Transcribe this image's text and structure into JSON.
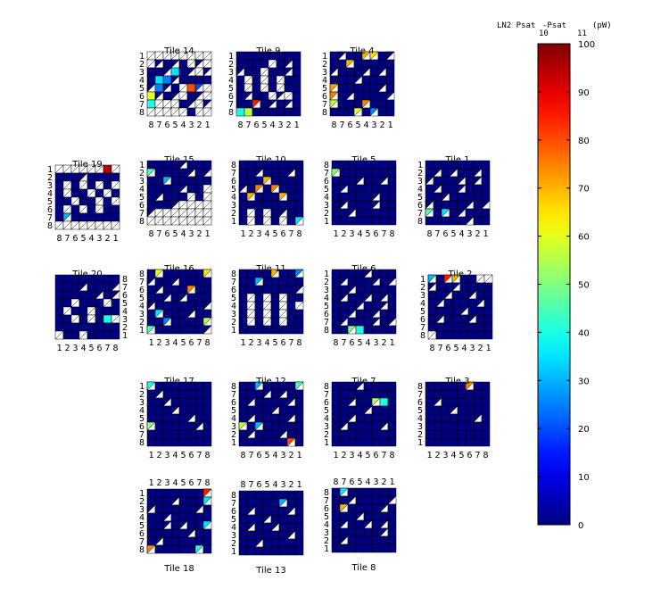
{
  "chart_data": {
    "type": "heatmap",
    "colorbar": {
      "title_main": "LN2 Psat",
      "title_sub_a": "10",
      "title_sep": " -Psat",
      "title_sub_b": "11",
      "title_unit": "(pW)",
      "range": [
        0,
        100
      ],
      "ticks": [
        "0",
        "10",
        "20",
        "30",
        "40",
        "50",
        "60",
        "70",
        "80",
        "90",
        "100"
      ],
      "colormap": "jet"
    },
    "tiles": [
      {
        "title": "Tile 14",
        "title_pos": "top",
        "row_labels": [
          "1",
          "2",
          "3",
          "4",
          "5",
          "6",
          "7",
          "8"
        ],
        "col_labels": [
          "8",
          "7",
          "6",
          "5",
          "4",
          "3",
          "2",
          "1"
        ],
        "col_label_pos": "bottom",
        "pattern": [
          "wwwwwwww",
          "wtBtBwtw",
          "BBtBBtwt",
          "BBBtBBBB",
          "tBtBwBtw",
          "BtBtwBtw",
          "BwwwBtwt",
          "wwwwwBww"
        ],
        "values": {
          "2,3": 35,
          "3,1": 35,
          "3,2": 25,
          "4,5": 80,
          "4,6": 20,
          "4,1": 25,
          "5,7": 85,
          "5,0": 60,
          "6,0": 40
        }
      },
      {
        "title": "Tile 9",
        "title_pos": "top",
        "row_labels": [
          "1",
          "2",
          "3",
          "4",
          "5",
          "6",
          "7",
          "8"
        ],
        "col_labels": [
          "8",
          "7",
          "6",
          "5",
          "4",
          "3",
          "2",
          "1"
        ],
        "col_label_pos": "bottom",
        "pattern": [
          "BBBBBBBB",
          "BBBBwBtB",
          "tBBwBBtB",
          "BwBwBwBB",
          "BwBwBwBB",
          "BtBBwtwB",
          "BBtBtBtB",
          "BBBBBBBB"
        ],
        "values": {
          "6,2": 85,
          "7,0": 40,
          "7,1": 55
        }
      },
      {
        "title": "Tile 4",
        "title_pos": "top",
        "row_labels": [
          "1",
          "2",
          "3",
          "4",
          "5",
          "6",
          "7",
          "8"
        ],
        "col_labels": [
          "8",
          "7",
          "6",
          "5",
          "4",
          "3",
          "2",
          "1"
        ],
        "col_label_pos": "bottom",
        "pattern": [
          "BtBBttBt",
          "BBtBBBBB",
          "tBBBtBtB",
          "BBBtBBBB",
          "tBBBBBtB",
          "tBtBBBBt",
          "tBBBtBBB",
          "BBBtBtBB"
        ],
        "values": {
          "0,4": 70,
          "0,5": 65,
          "1,2": 70,
          "4,0": 72,
          "5,0": 75,
          "6,0": 55,
          "6,4": 75,
          "7,3": 60,
          "7,5": 25
        }
      },
      {
        "title": "Tile 19",
        "title_pos": "top",
        "row_labels": [
          "1",
          "2",
          "3",
          "4",
          "5",
          "6",
          "7",
          "8"
        ],
        "col_labels": [
          "8",
          "7",
          "6",
          "5",
          "4",
          "3",
          "2",
          "1"
        ],
        "col_label_pos": "bottom",
        "pattern": [
          "wwwwwwBw",
          "BBBtBBBB",
          "BwBwBwBw",
          "BwBBwBwB",
          "BBwBBwBw",
          "BwBwBwBB",
          "BtBBBBBB",
          "wwwwwwww"
        ],
        "values": {
          "0,6": 95,
          "6,1": 30
        }
      },
      {
        "title": "Tile 15",
        "title_pos": "top",
        "row_labels": [
          "1",
          "2",
          "3",
          "4",
          "5",
          "6",
          "7",
          "8"
        ],
        "col_labels": [
          "8",
          "7",
          "6",
          "5",
          "4",
          "3",
          "2",
          "1"
        ],
        "col_label_pos": "bottom",
        "pattern": [
          "BBBBtBBB",
          "tBBBBtBt",
          "BBtBBBBB",
          "BBBBtBBw",
          "BtBBBwBw",
          "BBBtwwww",
          "twwwwwww",
          "wwwwwwww"
        ],
        "values": {
          "1,0": 45,
          "2,2": 30
        }
      },
      {
        "title": "Tile 10",
        "title_pos": "top",
        "row_labels": [
          "8",
          "7",
          "6",
          "5",
          "4",
          "3",
          "2",
          "1"
        ],
        "col_labels": [
          "1",
          "2",
          "3",
          "4",
          "5",
          "6",
          "7",
          "8"
        ],
        "col_label_pos": "bottom",
        "pattern": [
          "BBBBBBBB",
          "BBtBBBtB",
          "BBBtBBBB",
          "tBtBtBBB",
          "BtBBBtBB",
          "BBBBBBBB",
          "BwBwBtBB",
          "BwBwBwBt"
        ],
        "values": {
          "2,3": 70,
          "3,2": 75,
          "4,1": 70,
          "4,5": 70,
          "3,4": 75,
          "7,7": 35
        }
      },
      {
        "title": "Tile 5",
        "title_pos": "top",
        "row_labels": [
          "8",
          "7",
          "6",
          "5",
          "4",
          "3",
          "2",
          "1"
        ],
        "col_labels": [
          "1",
          "2",
          "3",
          "4",
          "5",
          "6",
          "7",
          "8"
        ],
        "col_label_pos": "bottom",
        "pattern": [
          "BBBBBBBB",
          "tBBBBBBB",
          "BBBtBBtB",
          "BtBBBBBB",
          "BBBBBtBB",
          "BtBBBtBB",
          "BBtBBBBB",
          "BBBBBBBB"
        ],
        "values": {
          "1,0": 50
        }
      },
      {
        "title": "Tile 1",
        "title_pos": "top",
        "row_labels": [
          "1",
          "2",
          "3",
          "4",
          "5",
          "6",
          "7",
          "8"
        ],
        "col_labels": [
          "8",
          "7",
          "6",
          "5",
          "4",
          "3",
          "2",
          "1"
        ],
        "col_label_pos": "bottom",
        "pattern": [
          "BBBBBBBB",
          "BtBtBBtB",
          "tBBBtBtB",
          "BtBBtBBB",
          "BBtBBBBB",
          "tBBBBtBt",
          "tBtBtBBB",
          "BBBBBtBB"
        ],
        "values": {
          "6,0": 45,
          "6,2": 35
        }
      },
      {
        "title": "Tile 20",
        "title_pos": "top",
        "row_labels": [
          "8",
          "7",
          "6",
          "5",
          "4",
          "3",
          "2",
          "1"
        ],
        "col_labels": [
          "1",
          "2",
          "3",
          "4",
          "5",
          "6",
          "7",
          "8"
        ],
        "col_label_pos": "bottom",
        "row_label_side": "right",
        "pattern": [
          "BBBBBBBB",
          "BBBtBBBt",
          "BBBBBtBt",
          "BBwBBBwB",
          "BwBBwBBB",
          "BBwBwBBw",
          "BBBBBBBB",
          "wBBwBBBB"
        ],
        "values": {
          "5,6": 40
        }
      },
      {
        "title": "Tile 16",
        "title_pos": "top",
        "row_labels": [
          "8",
          "7",
          "6",
          "5",
          "4",
          "3",
          "2",
          "1"
        ],
        "col_labels": [
          "1",
          "2",
          "3",
          "4",
          "5",
          "6",
          "7",
          "8"
        ],
        "col_label_pos": "bottom",
        "pattern": [
          "BtBBBBBt",
          "tBBtBBBB",
          "BtBBBtBB",
          "BBtBtBBB",
          "tBBBBBBt",
          "BtBBBtBB",
          "BBtBBBBt",
          "tBBBBBBt"
        ],
        "values": {
          "0,1": 60,
          "0,7": 65,
          "2,5": 75,
          "5,1": 35,
          "6,2": 25,
          "6,7": 55,
          "7,0": 45
        }
      },
      {
        "title": "Tile 11",
        "title_pos": "top",
        "row_labels": [
          "8",
          "7",
          "6",
          "5",
          "4",
          "3",
          "2",
          "1"
        ],
        "col_labels": [
          "1",
          "2",
          "3",
          "4",
          "5",
          "6",
          "7",
          "8"
        ],
        "col_label_pos": "bottom",
        "pattern": [
          "BBBBtBBt",
          "BBtBBBBB",
          "BBBBBBBt",
          "BwBwBwBB",
          "BwBwBwBw",
          "BwBwBwBB",
          "BwBwBwBB",
          "BBBBBBBB"
        ],
        "values": {
          "0,4": 70,
          "1,2": 30,
          "0,7": 25
        }
      },
      {
        "title": "Tile 6",
        "title_pos": "top",
        "row_labels": [
          "1",
          "2",
          "3",
          "4",
          "5",
          "6",
          "7",
          "8"
        ],
        "col_labels": [
          "8",
          "7",
          "6",
          "5",
          "4",
          "3",
          "2",
          "1"
        ],
        "col_label_pos": "bottom",
        "pattern": [
          "BBBBtBBB",
          "BtBBBtBt",
          "BBtBBBBB",
          "BtBBtBtB",
          "BBBtBBtB",
          "BBtBBtBB",
          "BtBBBtBt",
          "BBtBBBBB"
        ],
        "values": {
          "7,2": 50,
          "7,3": 40
        }
      },
      {
        "title": "Tile 2",
        "title_pos": "top",
        "row_labels": [
          "1",
          "2",
          "3",
          "4",
          "5",
          "6",
          "7",
          "8"
        ],
        "col_labels": [
          "8",
          "7",
          "6",
          "5",
          "4",
          "3",
          "2",
          "1"
        ],
        "col_label_pos": "bottom",
        "pattern": [
          "tBttBBww",
          "tBBtBBBB",
          "BBtBBtBB",
          "BtBBBBtB",
          "BBBBtBBB",
          "BtBBBtBB",
          "BBBBBBBB",
          "wBBBBBBB"
        ],
        "values": {
          "0,0": 30,
          "0,2": 85,
          "0,3": 70
        }
      },
      {
        "title": "Tile 17",
        "title_pos": "top",
        "row_labels": [
          "1",
          "2",
          "3",
          "4",
          "5",
          "6",
          "7",
          "8"
        ],
        "col_labels": [
          "1",
          "2",
          "3",
          "4",
          "5",
          "6",
          "7",
          "8"
        ],
        "col_label_pos": "bottom",
        "pattern": [
          "tBBBBBBB",
          "BtBBBBBB",
          "BBtBBBBB",
          "BBBtBBBB",
          "BBBBBtBB",
          "tBBBBBtB",
          "BBBBBBBB",
          "BBBBBBBB"
        ],
        "values": {
          "0,0": 40,
          "5,0": 50
        }
      },
      {
        "title": "Tile 12",
        "title_pos": "top",
        "row_labels": [
          "8",
          "7",
          "6",
          "5",
          "4",
          "3",
          "2",
          "1"
        ],
        "col_labels": [
          "8",
          "7",
          "6",
          "5",
          "4",
          "3",
          "2",
          "1"
        ],
        "col_label_pos": "bottom",
        "pattern": [
          "BBtBBBBt",
          "BBBtBtBB",
          "BtBBBBtB",
          "BBBBtBBB",
          "BtBBBBtB",
          "tBtBBBBB",
          "BtBBBtBB",
          "BBBBBBtB"
        ],
        "values": {
          "0,2": 30,
          "0,7": 45,
          "5,0": 55,
          "5,2": 30,
          "7,6": 80
        }
      },
      {
        "title": "Tile 7",
        "title_pos": "top",
        "row_labels": [
          "8",
          "7",
          "6",
          "5",
          "4",
          "3",
          "2",
          "1"
        ],
        "col_labels": [
          "1",
          "2",
          "3",
          "4",
          "5",
          "6",
          "7",
          "8"
        ],
        "col_label_pos": "bottom",
        "pattern": [
          "BBBtBBBB",
          "BBBBBBBB",
          "BBtBBtBB",
          "BBBBtBBB",
          "BBtBBBBB",
          "BtBBBBtB",
          "BBBBBBBB",
          "BBBBBBBB"
        ],
        "values": {
          "2,5": 55,
          "2,6": 40
        }
      },
      {
        "title": "Tile 3",
        "title_pos": "top",
        "row_labels": [
          "8",
          "7",
          "6",
          "5",
          "4",
          "3",
          "2",
          "1"
        ],
        "col_labels": [
          "1",
          "2",
          "3",
          "4",
          "5",
          "6",
          "7",
          "8"
        ],
        "col_label_pos": "bottom",
        "pattern": [
          "BBBBBtBB",
          "BBBBBBBB",
          "BtBBBBBB",
          "BBBtBBBB",
          "BBBBBBtB",
          "BBBBBBBB",
          "BBBBBBBB",
          "BBBBBBBB"
        ],
        "values": {
          "0,5": 75
        }
      },
      {
        "title": "Tile 18",
        "title_pos": "bottom",
        "row_labels": [
          "1",
          "2",
          "3",
          "4",
          "5",
          "6",
          "7",
          "8"
        ],
        "col_labels": [
          "1",
          "2",
          "3",
          "4",
          "5",
          "6",
          "7",
          "8"
        ],
        "col_label_pos": "top",
        "pattern": [
          "BBBBBBBt",
          "BBBtBBBt",
          "tBBBBBtB",
          "BBtBBBBB",
          "BBtBtBBt",
          "BBBBBtBB",
          "BtBBBBBB",
          "tBBBBBtB"
        ],
        "values": {
          "0,7": 85,
          "1,7": 35,
          "4,7": 35,
          "7,0": 75,
          "7,6": 40
        }
      },
      {
        "title": "Tile 13",
        "title_pos": "bottom",
        "row_labels": [
          "8",
          "7",
          "6",
          "5",
          "4",
          "3",
          "2",
          "1"
        ],
        "col_labels": [
          "8",
          "7",
          "6",
          "5",
          "4",
          "3",
          "2",
          "1"
        ],
        "col_label_pos": "top",
        "pattern": [
          "BBBBBBBB",
          "BBBBBtBB",
          "BtBBBBtB",
          "BBBtBBBB",
          "BtBBtBBB",
          "BBBBBBtB",
          "BBtBBBBB",
          "BBBBBBBB"
        ],
        "values": {
          "1,5": 30
        }
      },
      {
        "title": "Tile 8",
        "title_pos": "bottom",
        "row_labels": [
          "8",
          "7",
          "6",
          "5",
          "4",
          "3",
          "2",
          "1"
        ],
        "col_labels": [
          "8",
          "7",
          "6",
          "5",
          "4",
          "3",
          "2",
          "1"
        ],
        "col_label_pos": "top",
        "pattern": [
          "BtBBBBBB",
          "BBtBBBBt",
          "BtBBBBtB",
          "BBBtBBBB",
          "BtBBtBtB",
          "BBBBBBtB",
          "BtBBBBBB",
          "BBBBBBBB"
        ],
        "values": {
          "2,1": 70,
          "0,1": 35
        }
      }
    ]
  }
}
